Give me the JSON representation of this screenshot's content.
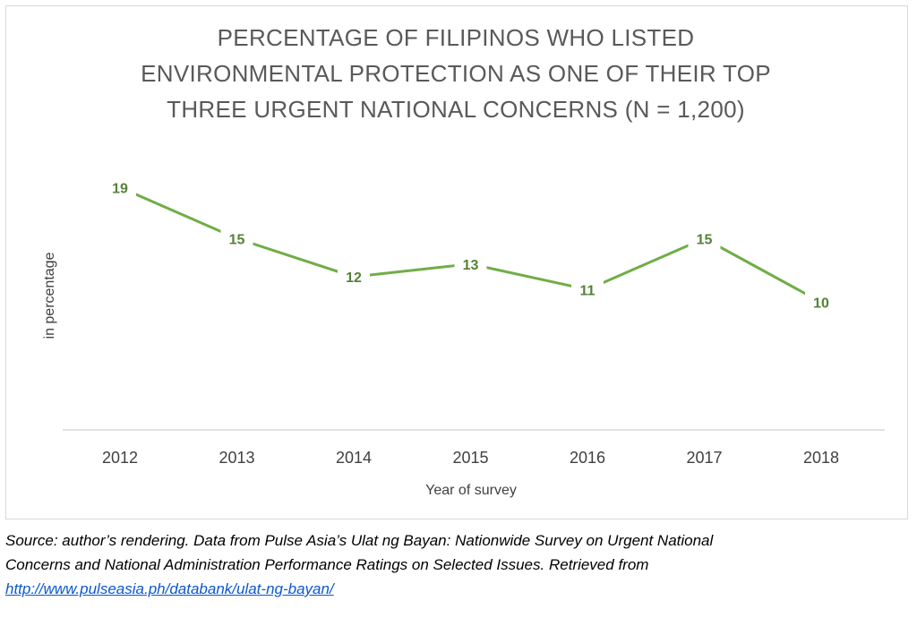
{
  "chart_data": {
    "type": "line",
    "title_lines": [
      "PERCENTAGE OF FILIPINOS WHO LISTED",
      "ENVIRONMENTAL PROTECTION AS ONE OF THEIR TOP",
      "THREE URGENT NATIONAL CONCERNS (N = 1,200)"
    ],
    "xlabel": "Year of survey",
    "ylabel": "in percentage",
    "categories": [
      "2012",
      "2013",
      "2014",
      "2015",
      "2016",
      "2017",
      "2018"
    ],
    "series": [
      {
        "values": [
          19,
          15,
          12,
          13,
          11,
          15,
          10
        ],
        "color": "#70ad47"
      }
    ],
    "ylim": [
      0,
      20
    ],
    "data_label_color": "#548235",
    "grid": false,
    "legend": "none"
  },
  "caption": {
    "line1": "Source: author’s rendering. Data from Pulse Asia’s Ulat ng Bayan: Nationwide Survey on Urgent National",
    "line2": "Concerns and National Administration Performance Ratings on Selected Issues. Retrieved from",
    "link": "http://www.pulseasia.ph/databank/ulat-ng-bayan/"
  }
}
